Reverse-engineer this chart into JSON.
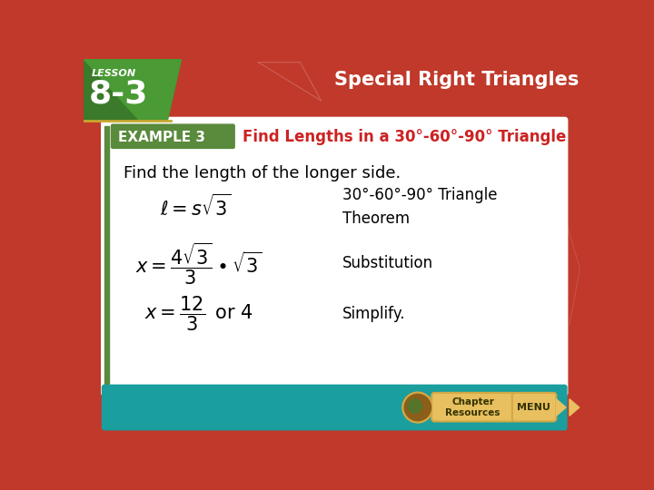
{
  "bg_color": "#c0392b",
  "slide_bg": "#ffffff",
  "example_bar_color": "#5a8a3c",
  "example_label": "EXAMPLE 3",
  "title_text": "Find Lengths in a 30°-60°-90° Triangle",
  "title_color": "#cc2222",
  "lesson_color": "#ffffff",
  "header_title": "Special Right Triangles",
  "body_text": "Find the length of the longer side.",
  "eq1_latex": "$\\ell = s\\sqrt{3}$",
  "eq2_latex": "$x = \\dfrac{4\\sqrt{3}}{3} \\bullet \\sqrt{3}$",
  "eq3_latex": "$x = \\dfrac{12}{3}\\,$ or $4$",
  "label1": "30°-60°-90° Triangle\nTheorem",
  "label2": "Substitution",
  "label3": "Simplify.",
  "teal_color": "#1a9e9e",
  "gold_color": "#d4a843",
  "gold_btn_color": "#e8c060"
}
